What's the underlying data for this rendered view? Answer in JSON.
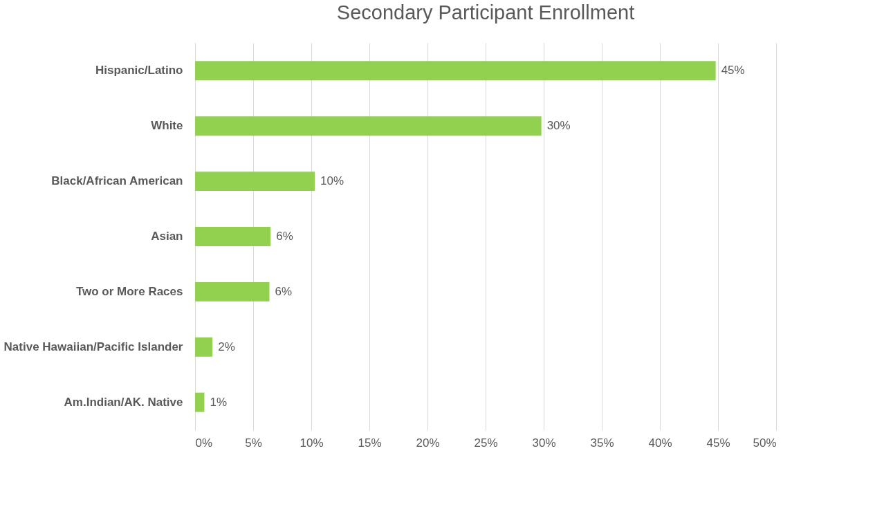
{
  "chart_data": {
    "type": "bar",
    "orientation": "horizontal",
    "title": "Secondary Participant Enrollment",
    "categories": [
      "Hispanic/Latino",
      "White",
      "Black/African American",
      "Asian",
      "Two or More Races",
      "Native Hawaiian/Pacific Islander",
      "Am.Indian/AK. Native"
    ],
    "values": [
      44.8,
      29.8,
      10.3,
      6.5,
      6.4,
      1.5,
      0.8
    ],
    "value_labels": [
      "45%",
      "30%",
      "10%",
      "6%",
      "6%",
      "2%",
      "1%"
    ],
    "color": "#92d050",
    "xlim": [
      0,
      50
    ],
    "xticks": [
      {
        "value": 0,
        "label": "0%"
      },
      {
        "value": 5,
        "label": "5%"
      },
      {
        "value": 10,
        "label": "10%"
      },
      {
        "value": 15,
        "label": "15%"
      },
      {
        "value": 20,
        "label": "20%"
      },
      {
        "value": 25,
        "label": "25%"
      },
      {
        "value": 30,
        "label": "30%"
      },
      {
        "value": 35,
        "label": "35%"
      },
      {
        "value": 40,
        "label": "40%"
      },
      {
        "value": 45,
        "label": "45%"
      },
      {
        "value": 50,
        "label": "50%"
      }
    ],
    "grid": "x"
  }
}
